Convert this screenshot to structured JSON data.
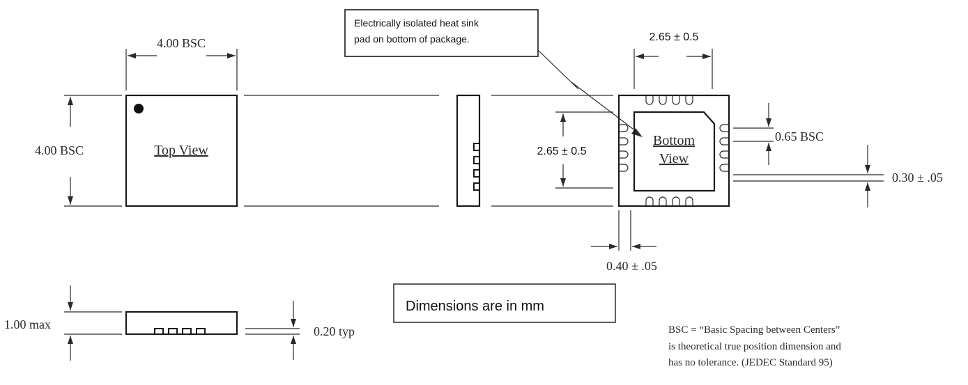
{
  "labels": {
    "top_width": "4.00 BSC",
    "top_height": "4.00  BSC",
    "top_view": "Top View",
    "callout": "Electrically isolated heat sink",
    "callout2": "pad on bottom of package.",
    "pad_width": "2.65 ± 0.5",
    "pad_height": "2.65 ± 0.5",
    "bottom_view_1": "Bottom",
    "bottom_view_2": "View",
    "pitch": "0.65 BSC",
    "pad_w": "0.30  ± .05",
    "pad_len": "0.40  ± .05",
    "height_max": "1.00 max",
    "standoff": "0.20  typ",
    "units": "Dimensions are in mm",
    "note_1": "BSC = “Basic Spacing between Centers”",
    "note_2": "is theoretical true position dimension and",
    "note_3": "has no tolerance. (JEDEC Standard 95)"
  }
}
